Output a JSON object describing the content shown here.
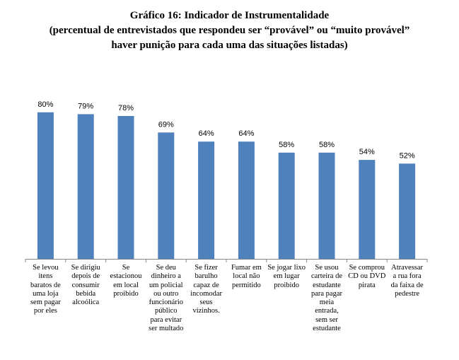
{
  "title_lines": [
    "Gráfico 16: Indicador de Instrumentalidade",
    "(percentual de entrevistados que respondeu ser “provável” ou “muito provável”",
    "haver punição para cada uma das situações listadas)"
  ],
  "colors": {
    "bar": "#4f81bd",
    "axis": "#888888",
    "text": "#000000"
  },
  "chart_data": {
    "type": "bar",
    "title": "Gráfico 16: Indicador de Instrumentalidade (percentual de entrevistados que respondeu ser “provável” ou “muito provável” haver punição para cada uma das situações listadas)",
    "categories": [
      [
        "Se levou",
        "itens",
        "baratos de",
        "uma loja",
        "sem pagar",
        "por eles"
      ],
      [
        "Se dirigiu",
        "depois de",
        "consumir",
        "bebida",
        "alcoólica"
      ],
      [
        "Se",
        "estacionou",
        "em local",
        "proibido"
      ],
      [
        "Se deu",
        "dinheiro a",
        "um policial",
        "ou outro",
        "funcionário",
        "público",
        "para evitar",
        "ser multado"
      ],
      [
        "Se fizer",
        "barulho",
        "capaz de",
        "incomodar",
        "seus",
        "vizinhos."
      ],
      [
        "Fumar em",
        "local não",
        "permitido"
      ],
      [
        "Se jogar lixo",
        "em lugar",
        "proibido"
      ],
      [
        "Se usou",
        "carteira de",
        "estudante",
        "para pagar",
        "meia",
        "entrada,",
        "sem ser",
        "estudante"
      ],
      [
        "Se comprou",
        "CD ou DVD",
        "pirata"
      ],
      [
        "Atravessar",
        "a rua fora",
        "da faixa de",
        "pedestre"
      ]
    ],
    "values": [
      80,
      79,
      78,
      69,
      64,
      64,
      58,
      58,
      54,
      52
    ],
    "data_labels": [
      "80%",
      "79%",
      "78%",
      "69%",
      "64%",
      "64%",
      "58%",
      "58%",
      "54%",
      "52%"
    ],
    "ylim": [
      0,
      100
    ],
    "grid": false,
    "legend": "none"
  }
}
